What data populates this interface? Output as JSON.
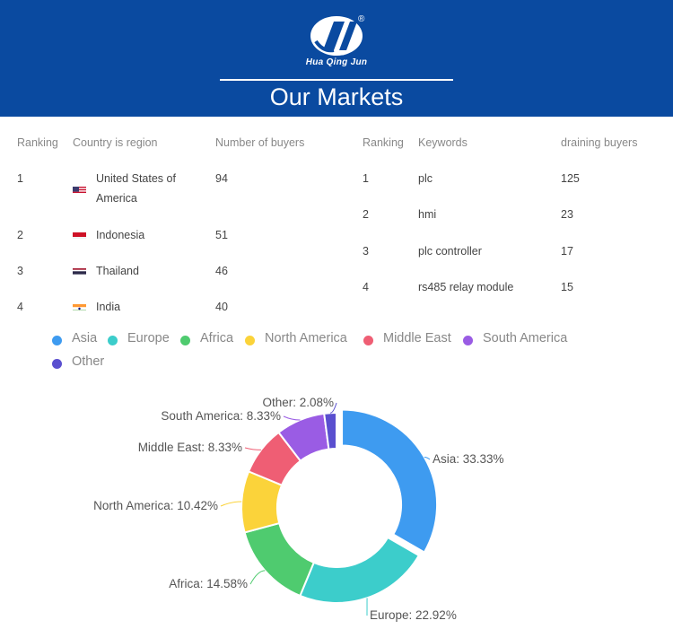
{
  "header": {
    "brand": "Hua Qing Jun",
    "registered": "®",
    "title": "Our Markets"
  },
  "countries_table": {
    "headers": [
      "Ranking",
      "Country is region",
      "Number of buyers"
    ],
    "rows": [
      {
        "rank": "1",
        "country_line1": "United States of",
        "country_line2": "America",
        "buyers": "94",
        "flag": "us-flag-icon"
      },
      {
        "rank": "2",
        "country_line1": "Indonesia",
        "country_line2": "",
        "buyers": "51",
        "flag": "indonesia-flag-icon"
      },
      {
        "rank": "3",
        "country_line1": "Thailand",
        "country_line2": "",
        "buyers": "46",
        "flag": "thailand-flag-icon"
      },
      {
        "rank": "4",
        "country_line1": "India",
        "country_line2": "",
        "buyers": "40",
        "flag": "india-flag-icon"
      }
    ]
  },
  "keywords_table": {
    "headers": [
      "Ranking",
      "Keywords",
      "draining buyers"
    ],
    "rows": [
      {
        "rank": "1",
        "keyword": "plc",
        "buyers": "125"
      },
      {
        "rank": "2",
        "keyword": "hmi",
        "buyers": "23"
      },
      {
        "rank": "3",
        "keyword": "plc controller",
        "buyers": "17"
      },
      {
        "rank": "4",
        "keyword": "rs485 relay module",
        "buyers": "15"
      }
    ]
  },
  "chart_data": {
    "type": "pie",
    "donut": true,
    "title": "",
    "legend": "top",
    "categories": [
      "Asia",
      "Europe",
      "Africa",
      "North America",
      "Middle East",
      "South America",
      "Other"
    ],
    "values": [
      33.33,
      22.92,
      14.58,
      10.42,
      8.33,
      8.33,
      2.08
    ],
    "labels": [
      "Asia: 33.33%",
      "Europe: 22.92%",
      "Africa: 14.58%",
      "North America: 10.42%",
      "Middle East: 8.33%",
      "South America: 8.33%",
      "Other: 2.08%"
    ],
    "colors": [
      "#3e9bf0",
      "#3ccdcb",
      "#4fcb6f",
      "#fbd33a",
      "#ef5e74",
      "#9a5ce4",
      "#5a4fcf"
    ],
    "highlighted": "Asia"
  }
}
